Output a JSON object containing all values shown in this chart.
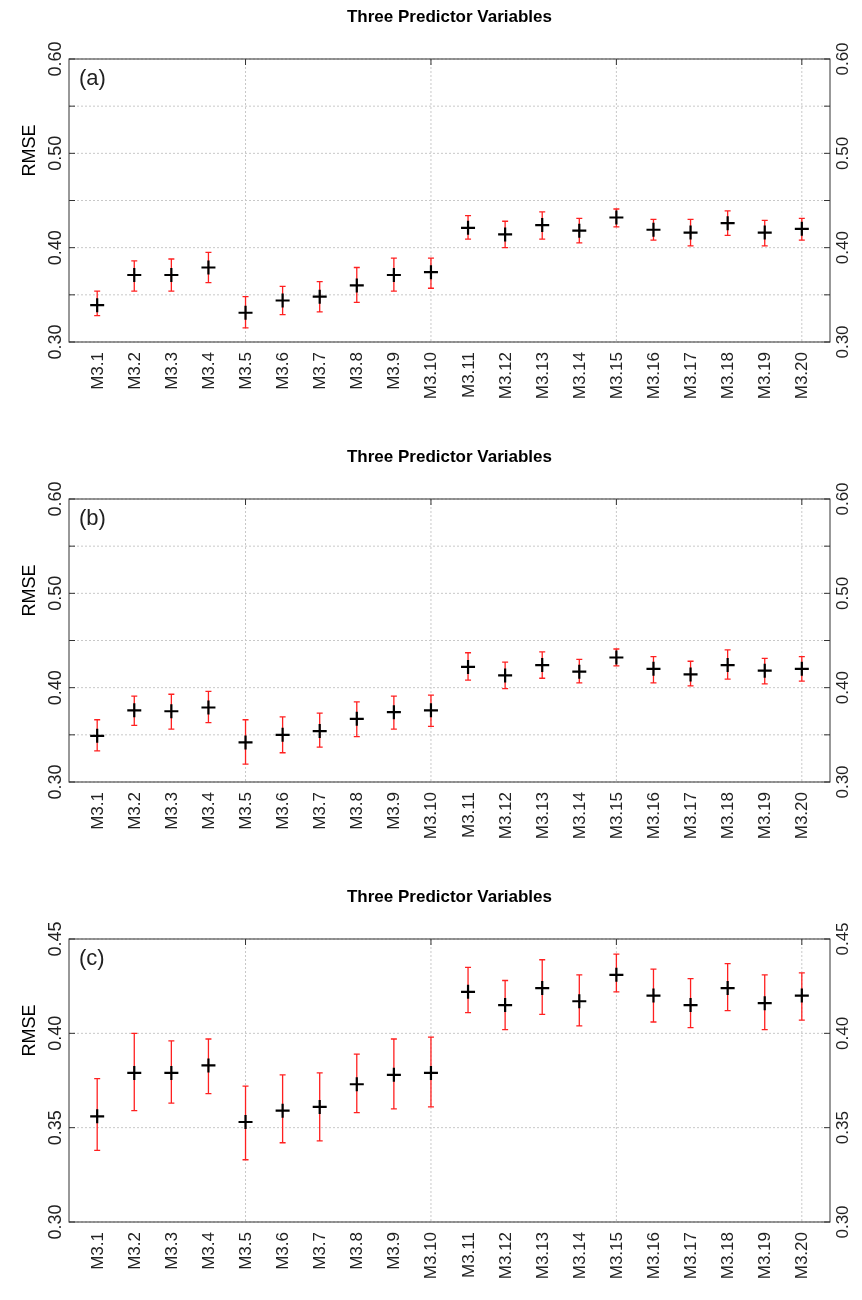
{
  "chart_data": [
    {
      "type": "scatter",
      "title": "Three Predictor Variables",
      "ylabel": "RMSE",
      "annotations": [
        "(a)"
      ],
      "marker": "cross",
      "grid": true,
      "categories": [
        "M3.1",
        "M3.2",
        "M3.3",
        "M3.4",
        "M3.5",
        "M3.6",
        "M3.7",
        "M3.8",
        "M3.9",
        "M3.10",
        "M3.11",
        "M3.12",
        "M3.13",
        "M3.14",
        "M3.15",
        "M3.16",
        "M3.17",
        "M3.18",
        "M3.19",
        "M3.20"
      ],
      "ylim": [
        0.3,
        0.6
      ],
      "yticks": [
        {
          "value": 0.3,
          "label": "0.30"
        },
        {
          "value": 0.35,
          "label": null
        },
        {
          "value": 0.4,
          "label": "0.40"
        },
        {
          "value": 0.45,
          "label": null
        },
        {
          "value": 0.5,
          "label": "0.50"
        },
        {
          "value": 0.55,
          "label": null
        },
        {
          "value": 0.6,
          "label": "0.60"
        }
      ],
      "y2lim": [
        0.3,
        0.6
      ],
      "y2ticks": [
        {
          "value": 0.3,
          "label": "0.30"
        },
        {
          "value": 0.35,
          "label": null
        },
        {
          "value": 0.4,
          "label": "0.40"
        },
        {
          "value": 0.45,
          "label": null
        },
        {
          "value": 0.5,
          "label": "0.50"
        },
        {
          "value": 0.55,
          "label": null
        },
        {
          "value": 0.6,
          "label": "0.60"
        }
      ],
      "series": [
        {
          "color": "#000000",
          "values": [
            0.339,
            0.371,
            0.371,
            0.379,
            0.331,
            0.344,
            0.348,
            0.36,
            0.371,
            0.374,
            0.421,
            0.414,
            0.424,
            0.418,
            0.432,
            0.419,
            0.416,
            0.426,
            0.416,
            0.42
          ],
          "errors": [
            [
              0.328,
              0.354
            ],
            [
              0.354,
              0.386
            ],
            [
              0.354,
              0.388
            ],
            [
              0.363,
              0.395
            ],
            [
              0.315,
              0.348
            ],
            [
              0.329,
              0.359
            ],
            [
              0.332,
              0.364
            ],
            [
              0.342,
              0.379
            ],
            [
              0.354,
              0.389
            ],
            [
              0.357,
              0.389
            ],
            [
              0.409,
              0.434
            ],
            [
              0.4,
              0.428
            ],
            [
              0.409,
              0.438
            ],
            [
              0.405,
              0.431
            ],
            [
              0.422,
              0.441
            ],
            [
              0.408,
              0.43
            ],
            [
              0.402,
              0.43
            ],
            [
              0.413,
              0.439
            ],
            [
              0.402,
              0.429
            ],
            [
              0.408,
              0.431
            ]
          ]
        }
      ]
    },
    {
      "type": "scatter",
      "title": "Three Predictor Variables",
      "ylabel": "RMSE",
      "annotations": [
        "(b)"
      ],
      "marker": "cross",
      "grid": true,
      "categories": [
        "M3.1",
        "M3.2",
        "M3.3",
        "M3.4",
        "M3.5",
        "M3.6",
        "M3.7",
        "M3.8",
        "M3.9",
        "M3.10",
        "M3.11",
        "M3.12",
        "M3.13",
        "M3.14",
        "M3.15",
        "M3.16",
        "M3.17",
        "M3.18",
        "M3.19",
        "M3.20"
      ],
      "ylim": [
        0.3,
        0.6
      ],
      "yticks": [
        {
          "value": 0.3,
          "label": "0.30"
        },
        {
          "value": 0.35,
          "label": null
        },
        {
          "value": 0.4,
          "label": "0.40"
        },
        {
          "value": 0.45,
          "label": null
        },
        {
          "value": 0.5,
          "label": "0.50"
        },
        {
          "value": 0.55,
          "label": null
        },
        {
          "value": 0.6,
          "label": "0.60"
        }
      ],
      "y2lim": [
        0.3,
        0.6
      ],
      "y2ticks": [
        {
          "value": 0.3,
          "label": "0.30"
        },
        {
          "value": 0.35,
          "label": null
        },
        {
          "value": 0.4,
          "label": "0.40"
        },
        {
          "value": 0.45,
          "label": null
        },
        {
          "value": 0.5,
          "label": "0.50"
        },
        {
          "value": 0.55,
          "label": null
        },
        {
          "value": 0.6,
          "label": "0.60"
        }
      ],
      "series": [
        {
          "color": "#000000",
          "values": [
            0.349,
            0.376,
            0.375,
            0.379,
            0.342,
            0.35,
            0.354,
            0.367,
            0.374,
            0.376,
            0.422,
            0.413,
            0.424,
            0.417,
            0.432,
            0.42,
            0.414,
            0.424,
            0.418,
            0.42
          ],
          "errors": [
            [
              0.333,
              0.366
            ],
            [
              0.36,
              0.391
            ],
            [
              0.356,
              0.393
            ],
            [
              0.363,
              0.396
            ],
            [
              0.319,
              0.366
            ],
            [
              0.331,
              0.369
            ],
            [
              0.337,
              0.373
            ],
            [
              0.348,
              0.385
            ],
            [
              0.356,
              0.391
            ],
            [
              0.359,
              0.392
            ],
            [
              0.408,
              0.437
            ],
            [
              0.399,
              0.427
            ],
            [
              0.41,
              0.438
            ],
            [
              0.405,
              0.43
            ],
            [
              0.423,
              0.441
            ],
            [
              0.405,
              0.433
            ],
            [
              0.402,
              0.428
            ],
            [
              0.409,
              0.44
            ],
            [
              0.404,
              0.431
            ],
            [
              0.407,
              0.433
            ]
          ]
        }
      ]
    },
    {
      "type": "scatter",
      "title": "Three Predictor Variables",
      "ylabel": "RMSE",
      "annotations": [
        "(c)"
      ],
      "marker": "cross",
      "grid": true,
      "categories": [
        "M3.1",
        "M3.2",
        "M3.3",
        "M3.4",
        "M3.5",
        "M3.6",
        "M3.7",
        "M3.8",
        "M3.9",
        "M3.10",
        "M3.11",
        "M3.12",
        "M3.13",
        "M3.14",
        "M3.15",
        "M3.16",
        "M3.17",
        "M3.18",
        "M3.19",
        "M3.20"
      ],
      "ylim": [
        0.3,
        0.45
      ],
      "yticks": [
        {
          "value": 0.3,
          "label": "0.30"
        },
        {
          "value": 0.35,
          "label": "0.35"
        },
        {
          "value": 0.4,
          "label": "0.40"
        },
        {
          "value": 0.45,
          "label": "0.45"
        }
      ],
      "y2lim": [
        0.3,
        0.45
      ],
      "y2ticks": [
        {
          "value": 0.3,
          "label": "0.30"
        },
        {
          "value": 0.35,
          "label": "0.35"
        },
        {
          "value": 0.4,
          "label": "0.40"
        },
        {
          "value": 0.45,
          "label": "0.45"
        }
      ],
      "series": [
        {
          "color": "#000000",
          "values": [
            0.356,
            0.379,
            0.379,
            0.383,
            0.353,
            0.359,
            0.361,
            0.373,
            0.378,
            0.379,
            0.422,
            0.415,
            0.424,
            0.417,
            0.431,
            0.42,
            0.415,
            0.424,
            0.416,
            0.42
          ],
          "errors": [
            [
              0.338,
              0.376
            ],
            [
              0.359,
              0.4
            ],
            [
              0.363,
              0.396
            ],
            [
              0.368,
              0.397
            ],
            [
              0.333,
              0.372
            ],
            [
              0.342,
              0.378
            ],
            [
              0.343,
              0.379
            ],
            [
              0.358,
              0.389
            ],
            [
              0.36,
              0.397
            ],
            [
              0.361,
              0.398
            ],
            [
              0.411,
              0.435
            ],
            [
              0.402,
              0.428
            ],
            [
              0.41,
              0.439
            ],
            [
              0.404,
              0.431
            ],
            [
              0.422,
              0.442
            ],
            [
              0.406,
              0.434
            ],
            [
              0.403,
              0.429
            ],
            [
              0.412,
              0.437
            ],
            [
              0.402,
              0.431
            ],
            [
              0.407,
              0.432
            ]
          ]
        }
      ]
    }
  ]
}
